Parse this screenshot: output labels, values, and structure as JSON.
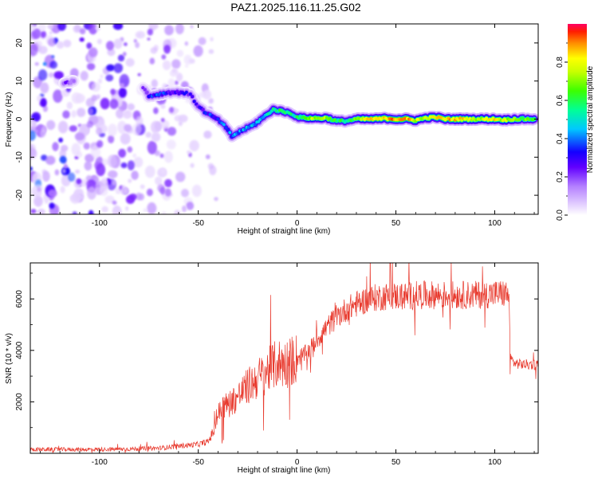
{
  "title": "PAZ1.2025.116.11.25.G02",
  "chart_data": [
    {
      "type": "heatmap",
      "xlabel": "Height of straight line (km)",
      "ylabel": "Frequency (Hz)",
      "xlim": [
        -135,
        122
      ],
      "ylim": [
        -25,
        25
      ],
      "xticks": [
        -100,
        -50,
        0,
        50,
        100
      ],
      "yticks": [
        -20,
        -10,
        0,
        10,
        20
      ],
      "colorbar": {
        "label": "Normalized spectral amplitude",
        "range": [
          0,
          1
        ],
        "ticks": [
          0.0,
          0.2,
          0.4,
          0.6,
          0.8
        ],
        "tick_labels": [
          "0.0",
          "0.2",
          "0.4",
          "0.6",
          "0.8"
        ]
      },
      "ridge": [
        {
          "x": -118,
          "y": 9.5,
          "amp": 0.2
        },
        {
          "x": -113,
          "y": 10,
          "amp": 0.2
        },
        {
          "x": -78,
          "y": 8.5,
          "amp": 0.15
        },
        {
          "x": -75,
          "y": 6,
          "amp": 0.3
        },
        {
          "x": -70,
          "y": 6.5,
          "amp": 0.35
        },
        {
          "x": -65,
          "y": 7,
          "amp": 0.3
        },
        {
          "x": -58,
          "y": 7,
          "amp": 0.3
        },
        {
          "x": -54,
          "y": 6.5,
          "amp": 0.25
        },
        {
          "x": -51,
          "y": 4,
          "amp": 0.25
        },
        {
          "x": -46,
          "y": 1.5,
          "amp": 0.3
        },
        {
          "x": -42,
          "y": 0.5,
          "amp": 0.35
        },
        {
          "x": -38,
          "y": -1,
          "amp": 0.35
        },
        {
          "x": -35,
          "y": -3,
          "amp": 0.4
        },
        {
          "x": -33,
          "y": -4.5,
          "amp": 0.4
        },
        {
          "x": -28,
          "y": -3,
          "amp": 0.4
        },
        {
          "x": -22,
          "y": -1.5,
          "amp": 0.45
        },
        {
          "x": -17,
          "y": 0.5,
          "amp": 0.45
        },
        {
          "x": -12,
          "y": 2.5,
          "amp": 0.55
        },
        {
          "x": -7,
          "y": 2,
          "amp": 0.6
        },
        {
          "x": -3,
          "y": 1.5,
          "amp": 0.55
        },
        {
          "x": 0,
          "y": 0.5,
          "amp": 0.55
        },
        {
          "x": 5,
          "y": 0.3,
          "amp": 0.7
        },
        {
          "x": 10,
          "y": 0.2,
          "amp": 0.75
        },
        {
          "x": 15,
          "y": 0.3,
          "amp": 0.7
        },
        {
          "x": 20,
          "y": -0.5,
          "amp": 0.6
        },
        {
          "x": 25,
          "y": -0.5,
          "amp": 0.55
        },
        {
          "x": 30,
          "y": 0,
          "amp": 0.65
        },
        {
          "x": 35,
          "y": 0,
          "amp": 0.8
        },
        {
          "x": 40,
          "y": 0,
          "amp": 0.85
        },
        {
          "x": 45,
          "y": 0.2,
          "amp": 0.85
        },
        {
          "x": 50,
          "y": 0,
          "amp": 0.9
        },
        {
          "x": 55,
          "y": 0,
          "amp": 0.9
        },
        {
          "x": 60,
          "y": -0.3,
          "amp": 0.75
        },
        {
          "x": 65,
          "y": 0.3,
          "amp": 0.75
        },
        {
          "x": 70,
          "y": 0.5,
          "amp": 0.8
        },
        {
          "x": 75,
          "y": 0,
          "amp": 0.85
        },
        {
          "x": 80,
          "y": 0,
          "amp": 0.85
        },
        {
          "x": 85,
          "y": 0,
          "amp": 0.8
        },
        {
          "x": 90,
          "y": 0,
          "amp": 0.75
        },
        {
          "x": 95,
          "y": 0,
          "amp": 0.75
        },
        {
          "x": 100,
          "y": 0,
          "amp": 0.8
        },
        {
          "x": 105,
          "y": -0.2,
          "amp": 0.75
        },
        {
          "x": 110,
          "y": 0,
          "amp": 0.7
        },
        {
          "x": 115,
          "y": 0,
          "amp": 0.65
        },
        {
          "x": 120,
          "y": 0,
          "amp": 0.65
        }
      ],
      "noise_region_x": [
        -135,
        -40
      ]
    },
    {
      "type": "line",
      "xlabel": "Height of straight line (km)",
      "ylabel": "SNR (10 * v/v)",
      "xlim": [
        -135,
        122
      ],
      "ylim": [
        0,
        7400
      ],
      "xticks": [
        -100,
        -50,
        0,
        50,
        100
      ],
      "yticks": [
        2000,
        4000,
        6000
      ],
      "color": "#e83a2e",
      "series": [
        {
          "x": [
            -135,
            -110,
            -90,
            -70,
            -60,
            -50,
            -45,
            -42,
            -40,
            -38,
            -35,
            -30,
            -25,
            -20,
            -15,
            -10,
            -5,
            0,
            5,
            10,
            15,
            20,
            25,
            30,
            35,
            40,
            45,
            50,
            55,
            60,
            70,
            80,
            90,
            100,
            105,
            107,
            108,
            110,
            115,
            122
          ],
          "y": [
            150,
            150,
            160,
            200,
            280,
            350,
            450,
            900,
            1500,
            1800,
            1900,
            2200,
            2600,
            2900,
            3200,
            3500,
            3500,
            3700,
            3900,
            4400,
            4900,
            5300,
            5600,
            5800,
            5950,
            6050,
            6100,
            6100,
            6100,
            6150,
            6150,
            6150,
            6150,
            6200,
            6200,
            6200,
            3700,
            3500,
            3450,
            3450
          ]
        }
      ]
    }
  ]
}
